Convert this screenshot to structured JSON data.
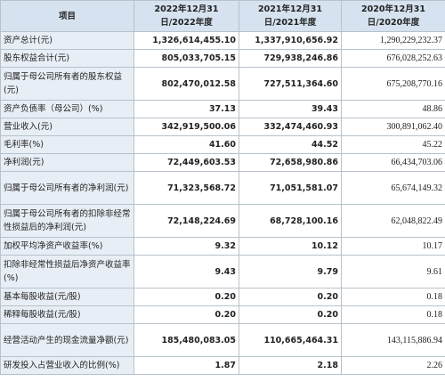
{
  "table": {
    "header": [
      "项目",
      "2022年12月31日/2022年度",
      "2021年12月31日/2021年度",
      "2020年12月31日/2020年度"
    ],
    "rows": [
      [
        "资产总计(元)",
        "1,326,614,455.10",
        "1,337,910,656.92",
        "1,290,229,232.37"
      ],
      [
        "股东权益合计(元)",
        "805,033,705.15",
        "729,938,246.86",
        "676,028,252.63"
      ],
      [
        "归属于母公司所有者的股东权益(元)",
        "802,470,012.58",
        "727,511,364.60",
        "675,208,770.16"
      ],
      [
        "资产负债率（母公司）(%)",
        "37.13",
        "39.43",
        "48.86"
      ],
      [
        "营业收入(元)",
        "342,919,500.06",
        "332,474,460.93",
        "300,891,062.40"
      ],
      [
        "毛利率(%)",
        "41.60",
        "44.52",
        "45.22"
      ],
      [
        "净利润(元)",
        "72,449,603.53",
        "72,658,980.86",
        "66,434,703.06"
      ],
      [
        "归属于母公司所有者的净利润(元)",
        "71,323,568.72",
        "71,051,581.07",
        "65,674,149.32"
      ],
      [
        "归属于母公司所有者的扣除非经常性损益后的净利润(元)",
        "72,148,224.69",
        "68,728,100.16",
        "62,048,822.49"
      ],
      [
        "加权平均净资产收益率(%)",
        "9.32",
        "10.12",
        "10.17"
      ],
      [
        "扣除非经常性损益后净资产收益率(%)",
        "9.43",
        "9.79",
        "9.61"
      ],
      [
        "基本每股收益(元/股)",
        "0.20",
        "0.20",
        "0.18"
      ],
      [
        "稀释每股收益(元/股)",
        "0.20",
        "0.20",
        "0.18"
      ],
      [
        "经营活动产生的现金流量净额(元)",
        "185,480,083.05",
        "110,665,464.31",
        "143,115,886.94"
      ],
      [
        "研发投入占营业收入的比例(%)",
        "1.87",
        "2.18",
        "2.26"
      ]
    ]
  }
}
